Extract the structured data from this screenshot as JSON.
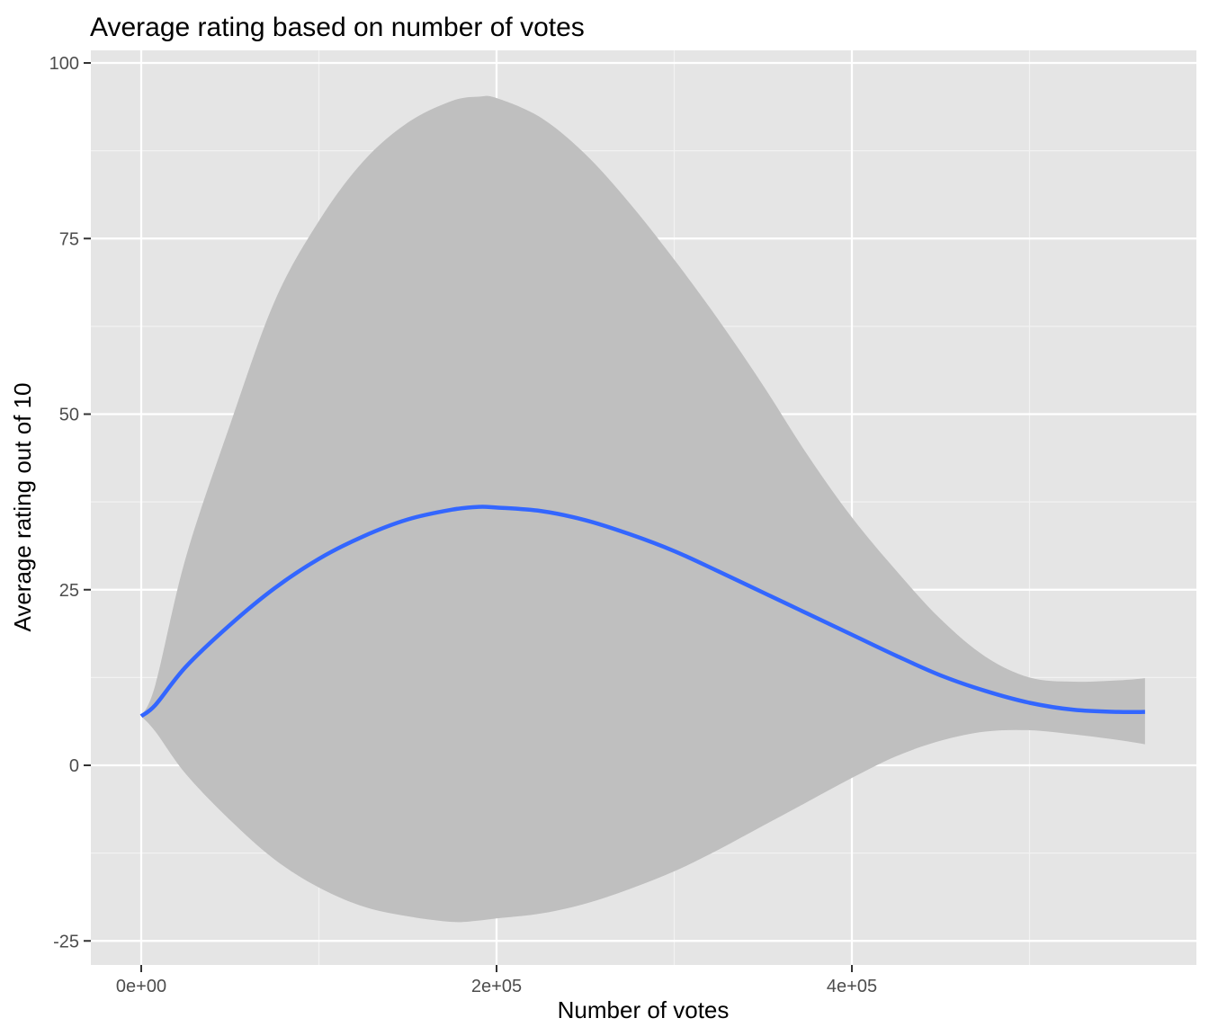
{
  "chart_data": {
    "type": "line",
    "title": "Average rating based on number of votes",
    "xlabel": "Number of votes",
    "ylabel": "Average rating out of 10",
    "xlim": [
      -14000,
      576000
    ],
    "ylim": [
      -28,
      101
    ],
    "x_ticks": [
      {
        "value": 0,
        "label": "0e+00"
      },
      {
        "value": 200000,
        "label": "2e+05"
      },
      {
        "value": 400000,
        "label": "4e+05"
      }
    ],
    "x_minor_ticks": [
      100000,
      300000,
      500000
    ],
    "y_ticks": [
      {
        "value": -25,
        "label": "-25"
      },
      {
        "value": 0,
        "label": "0"
      },
      {
        "value": 25,
        "label": "25"
      },
      {
        "value": 50,
        "label": "50"
      },
      {
        "value": 75,
        "label": "75"
      },
      {
        "value": 100,
        "label": "100"
      }
    ],
    "y_minor_ticks": [
      -12.5,
      12.5,
      37.5,
      62.5,
      87.5
    ],
    "grid": true,
    "legend": "none",
    "series": [
      {
        "color": "#3366FF",
        "ribbon_color": "#BFBFBF",
        "x": [
          0,
          8000,
          25000,
          50000,
          75000,
          100000,
          125000,
          150000,
          175000,
          190000,
          200000,
          225000,
          250000,
          275000,
          300000,
          325000,
          350000,
          375000,
          400000,
          425000,
          450000,
          475000,
          500000,
          525000,
          550000,
          565000
        ],
        "y": [
          7,
          8.6,
          14,
          20,
          25.2,
          29.4,
          32.6,
          35,
          36.4,
          36.8,
          36.7,
          36.2,
          34.9,
          32.9,
          30.5,
          27.6,
          24.6,
          21.6,
          18.6,
          15.6,
          12.8,
          10.6,
          8.9,
          7.9,
          7.6,
          7.6
        ],
        "lower": [
          7,
          4.8,
          -1.2,
          -7.8,
          -13.4,
          -17.4,
          -20.1,
          -21.5,
          -22.3,
          -22.1,
          -21.8,
          -21.1,
          -19.7,
          -17.6,
          -15.1,
          -12,
          -8.6,
          -5.2,
          -1.8,
          1.3,
          3.5,
          4.8,
          5.0,
          4.4,
          3.6,
          3
        ],
        "upper": [
          7,
          11.5,
          29.5,
          48.5,
          66,
          77.5,
          86,
          91.5,
          94.6,
          95.2,
          95,
          92.2,
          87,
          80,
          72,
          63.4,
          54.1,
          44.2,
          35.3,
          27.7,
          20.8,
          15.5,
          12.5,
          11.9,
          12.1,
          12.4
        ]
      }
    ]
  }
}
